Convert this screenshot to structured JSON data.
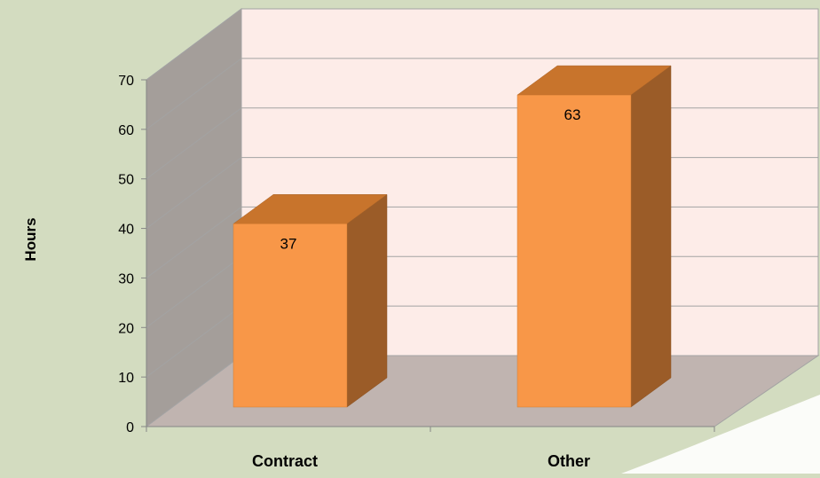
{
  "chart_data": {
    "type": "bar",
    "categories": [
      "Contract",
      "Other"
    ],
    "values": [
      37,
      63
    ],
    "title": "",
    "xlabel": "",
    "ylabel": "Hours",
    "ylim": [
      0,
      70
    ],
    "yticks": [
      0,
      10,
      20,
      30,
      40,
      50,
      60,
      70
    ],
    "data_labels": [
      "37",
      "63"
    ],
    "grid": true,
    "legend": "none",
    "style": "3d-column"
  },
  "colors": {
    "page_background": "#d3dcc0",
    "back_wall": "#fdece8",
    "side_wall": "#a49e9a",
    "floor": "#c0b4b0",
    "bar_front": "#f89748",
    "bar_top": "#c8742c",
    "bar_side": "#9b5c28",
    "gridline": "#a3a3a3",
    "text": "#000000"
  }
}
